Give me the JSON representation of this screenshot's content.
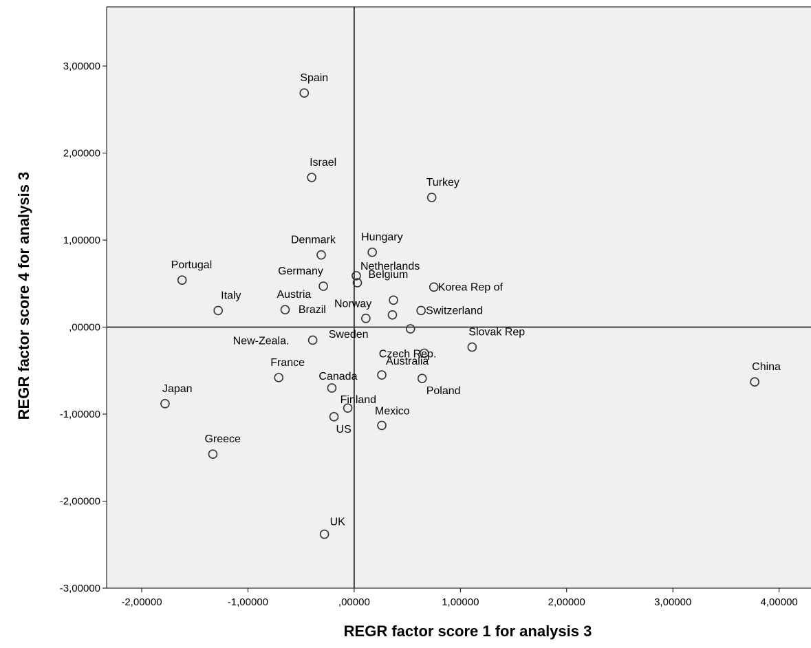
{
  "chart_data": {
    "type": "scatter",
    "xlabel": "REGR factor score   1 for analysis 3",
    "ylabel": "REGR factor score   4 for analysis 3",
    "xlim": [
      -2.33,
      4.3
    ],
    "ylim": [
      -3.0,
      3.68
    ],
    "x_ticks": [
      -2,
      -1,
      0,
      1,
      2,
      3,
      4
    ],
    "x_tick_labels": [
      "-2,00000",
      "-1,00000",
      ",00000",
      "1,00000",
      "2,00000",
      "3,00000",
      "4,00000"
    ],
    "y_ticks": [
      -3,
      -2,
      -1,
      0,
      1,
      2,
      3
    ],
    "y_tick_labels": [
      "-3,00000",
      "-2,00000",
      "-1,00000",
      ",00000",
      "1,00000",
      "2,00000",
      "3,00000"
    ],
    "reference_lines": {
      "x": 0,
      "y": 0
    },
    "grid": false,
    "marker": "hollow-circle",
    "colors": {
      "plot_bg": "#f0f0f0",
      "marker": "#333333",
      "axis": "#000000"
    },
    "points": [
      {
        "label": "Spain",
        "x": -0.47,
        "y": 2.69
      },
      {
        "label": "Israel",
        "x": -0.4,
        "y": 1.72
      },
      {
        "label": "Turkey",
        "x": 0.73,
        "y": 1.49
      },
      {
        "label": "Denmark",
        "x": -0.31,
        "y": 0.83
      },
      {
        "label": "Hungary",
        "x": 0.17,
        "y": 0.86
      },
      {
        "label": "Portugal",
        "x": -1.62,
        "y": 0.54
      },
      {
        "label": "Netherlands",
        "x": 0.02,
        "y": 0.59
      },
      {
        "label": "Germany",
        "x": -0.29,
        "y": 0.47
      },
      {
        "label": "Belgium",
        "x": 0.03,
        "y": 0.51
      },
      {
        "label": "Korea Rep of",
        "x": 0.75,
        "y": 0.46
      },
      {
        "label": "Italy",
        "x": -1.28,
        "y": 0.19
      },
      {
        "label": "Austria",
        "x": -0.65,
        "y": 0.2
      },
      {
        "label": "Norway",
        "x": 0.37,
        "y": 0.31
      },
      {
        "label": "Switzerland",
        "x": 0.63,
        "y": 0.19
      },
      {
        "label": "Brazil",
        "x": 0.11,
        "y": 0.1
      },
      {
        "label": "",
        "x": 0.36,
        "y": 0.14
      },
      {
        "label": "Sweden",
        "x": 0.53,
        "y": -0.02
      },
      {
        "label": "New-Zeala.",
        "x": -0.39,
        "y": -0.15
      },
      {
        "label": "Czech Rep.",
        "x": 0.66,
        "y": -0.3
      },
      {
        "label": "Slovak Rep",
        "x": 1.11,
        "y": -0.23
      },
      {
        "label": "China",
        "x": 3.77,
        "y": -0.63
      },
      {
        "label": "France",
        "x": -0.71,
        "y": -0.58
      },
      {
        "label": "Australia",
        "x": 0.26,
        "y": -0.55
      },
      {
        "label": "Poland",
        "x": 0.64,
        "y": -0.59
      },
      {
        "label": "Canada",
        "x": -0.21,
        "y": -0.7
      },
      {
        "label": "Finland",
        "x": -0.06,
        "y": -0.93
      },
      {
        "label": "Japan",
        "x": -1.78,
        "y": -0.88
      },
      {
        "label": "US",
        "x": -0.19,
        "y": -1.03
      },
      {
        "label": "Mexico",
        "x": 0.26,
        "y": -1.13
      },
      {
        "label": "Greece",
        "x": -1.33,
        "y": -1.46
      },
      {
        "label": "UK",
        "x": -0.28,
        "y": -2.38
      }
    ]
  }
}
